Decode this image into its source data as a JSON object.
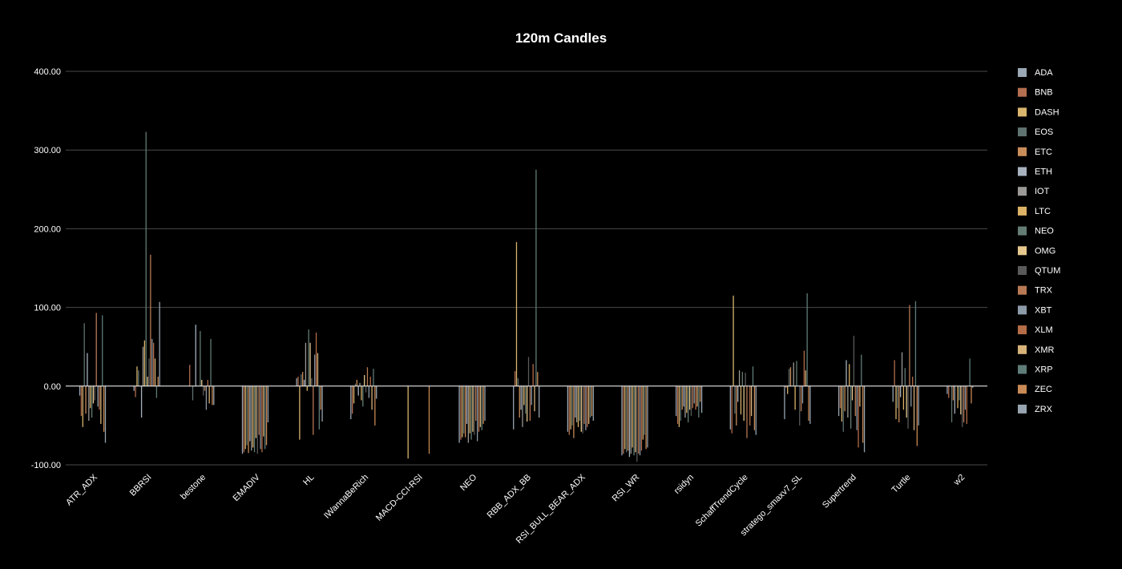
{
  "chart_data": {
    "type": "bar",
    "title": "120m Candles",
    "xlabel": "",
    "ylabel": "",
    "ylim": [
      -100,
      400
    ],
    "yticks": [
      -100,
      0,
      100,
      200,
      300,
      400
    ],
    "ytick_labels": [
      "-100.00",
      "0.00",
      "100.00",
      "200.00",
      "300.00",
      "400.00"
    ],
    "grid": true,
    "legend_position": "right",
    "categories": [
      "ATR_ADX",
      "BBRSI",
      "bestone",
      "EMADIV",
      "HL",
      "IWannaBeRich",
      "MACD-CCI-RSI",
      "NEO",
      "RBB_ADX_BB",
      "RSI_BULL_BEAR_ADX",
      "RSI_WR",
      "rsidyn",
      "SchaffTrendCycle",
      "stratego_smaxv7_SL",
      "Supertrend",
      "Turtle",
      "w2"
    ],
    "series": [
      {
        "name": "ADA",
        "color": "#9aa7b4",
        "values": [
          -12,
          -6,
          0,
          -86,
          10,
          -42,
          0,
          -72,
          -55,
          -58,
          -88,
          -38,
          -55,
          -42,
          -38,
          -20,
          -10
        ]
      },
      {
        "name": "BNB",
        "color": "#b46f50",
        "values": [
          -38,
          -14,
          27,
          -84,
          12,
          -35,
          0,
          -68,
          19,
          -62,
          -86,
          -48,
          -60,
          -2,
          -28,
          33,
          -15
        ]
      },
      {
        "name": "DASH",
        "color": "#d9b56e",
        "values": [
          -52,
          25,
          0,
          -80,
          -68,
          -22,
          -92,
          -65,
          183,
          -55,
          -80,
          -52,
          115,
          -10,
          -45,
          -42,
          0
        ]
      },
      {
        "name": "EOS",
        "color": "#5f7370",
        "values": [
          80,
          20,
          -18,
          -75,
          15,
          3,
          0,
          -60,
          10,
          -50,
          -84,
          -44,
          -35,
          22,
          -58,
          -28,
          -46
        ]
      },
      {
        "name": "ETC",
        "color": "#c98d5a",
        "values": [
          -35,
          0,
          0,
          -85,
          18,
          8,
          0,
          -65,
          -40,
          -66,
          -82,
          -30,
          -50,
          24,
          -32,
          -46,
          -18
        ]
      },
      {
        "name": "ETH",
        "color": "#a7b2bf",
        "values": [
          42,
          -40,
          78,
          -70,
          8,
          -12,
          0,
          -48,
          -30,
          -40,
          -90,
          -26,
          -20,
          0,
          33,
          -14,
          -35
        ]
      },
      {
        "name": "IOT",
        "color": "#9c9a96",
        "values": [
          -44,
          50,
          0,
          -82,
          55,
          4,
          0,
          -72,
          -52,
          -46,
          -86,
          -40,
          20,
          30,
          -40,
          43,
          0
        ]
      },
      {
        "name": "LTC",
        "color": "#dcb266",
        "values": [
          -28,
          58,
          0,
          -78,
          -6,
          -18,
          0,
          -60,
          -24,
          -52,
          -78,
          -34,
          -36,
          -30,
          28,
          -30,
          -28
        ]
      },
      {
        "name": "NEO",
        "color": "#647d74",
        "values": [
          -40,
          323,
          70,
          -84,
          72,
          -26,
          0,
          -68,
          -35,
          -44,
          -88,
          -46,
          18,
          32,
          -54,
          23,
          -18
        ]
      },
      {
        "name": "OMG",
        "color": "#e6c88e",
        "values": [
          -22,
          12,
          8,
          -66,
          55,
          14,
          0,
          -58,
          -45,
          -58,
          -84,
          -30,
          -44,
          0,
          -18,
          -40,
          -36
        ]
      },
      {
        "name": "QTUM",
        "color": "#5a5a5a",
        "values": [
          -18,
          35,
          -12,
          -86,
          10,
          -8,
          0,
          -62,
          37,
          -60,
          -96,
          -38,
          17,
          -50,
          64,
          -54,
          -52
        ]
      },
      {
        "name": "TRX",
        "color": "#b87955",
        "values": [
          93,
          167,
          -6,
          -62,
          -62,
          24,
          0,
          -44,
          -44,
          -48,
          -86,
          -28,
          -66,
          -32,
          -38,
          103,
          -46
        ]
      },
      {
        "name": "XBT",
        "color": "#8d9aa7",
        "values": [
          -26,
          60,
          -30,
          -80,
          40,
          -15,
          0,
          -70,
          -24,
          -56,
          -88,
          -22,
          0,
          -22,
          -56,
          -26,
          -30
        ]
      },
      {
        "name": "XLM",
        "color": "#b56d48",
        "values": [
          -30,
          55,
          8,
          -84,
          68,
          12,
          0,
          -58,
          28,
          -52,
          -82,
          -30,
          -50,
          45,
          -78,
          12,
          -48
        ]
      },
      {
        "name": "XMR",
        "color": "#d7b37a",
        "values": [
          -48,
          35,
          -22,
          -64,
          42,
          -30,
          0,
          -52,
          -32,
          -48,
          -68,
          -26,
          -38,
          20,
          -26,
          -56,
          0
        ]
      },
      {
        "name": "XRP",
        "color": "#5f7d78",
        "values": [
          90,
          -15,
          60,
          -80,
          -55,
          22,
          0,
          -56,
          275,
          -40,
          -62,
          -40,
          25,
          118,
          40,
          108,
          35
        ]
      },
      {
        "name": "ZEC",
        "color": "#c98a55",
        "values": [
          -58,
          12,
          -24,
          -75,
          -30,
          -50,
          -86,
          -48,
          18,
          -38,
          -80,
          -20,
          -56,
          -44,
          -72,
          -76,
          -22
        ]
      },
      {
        "name": "ZRX",
        "color": "#98a5b0",
        "values": [
          -72,
          107,
          -24,
          -46,
          -45,
          -16,
          0,
          -44,
          -40,
          -44,
          -78,
          -34,
          -62,
          -48,
          -84,
          -50,
          -2
        ]
      }
    ]
  }
}
